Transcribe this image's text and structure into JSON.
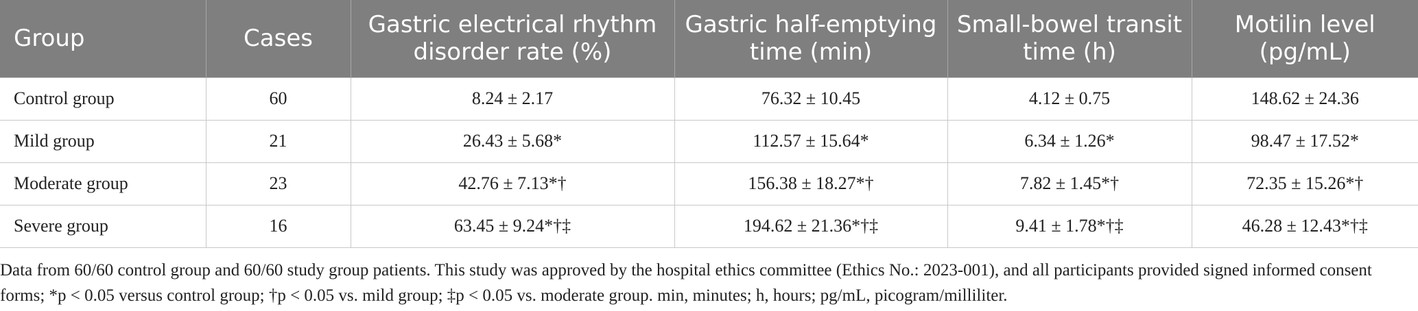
{
  "table": {
    "columns": [
      "Group",
      "Cases",
      "Gastric electrical rhythm disorder rate (%)",
      "Gastric half-emptying time (min)",
      "Small-bowel transit time (h)",
      "Motilin level (pg/mL)"
    ],
    "rows": [
      [
        "Control group",
        "60",
        "8.24 ± 2.17",
        "76.32 ± 10.45",
        "4.12 ± 0.75",
        "148.62 ± 24.36"
      ],
      [
        "Mild group",
        "21",
        "26.43 ± 5.68*",
        "112.57 ± 15.64*",
        "6.34 ± 1.26*",
        "98.47 ± 17.52*"
      ],
      [
        "Moderate group",
        "23",
        "42.76 ± 7.13*†",
        "156.38 ± 18.27*†",
        "7.82 ± 1.45*†",
        "72.35 ± 15.26*†"
      ],
      [
        "Severe group",
        "16",
        "63.45 ± 9.24*†‡",
        "194.62 ± 21.36*†‡",
        "9.41 ± 1.78*†‡",
        "46.28 ± 12.43*†‡"
      ]
    ]
  },
  "footnote": "Data from 60/60 control group and 60/60 study group patients. This study was approved by the hospital ethics committee (Ethics No.: 2023-001), and all participants provided signed informed consent forms; *p < 0.05 versus control group; †p < 0.05 vs. mild group; ‡p < 0.05 vs. moderate group. min, minutes; h, hours; pg/mL, picogram/milliliter."
}
